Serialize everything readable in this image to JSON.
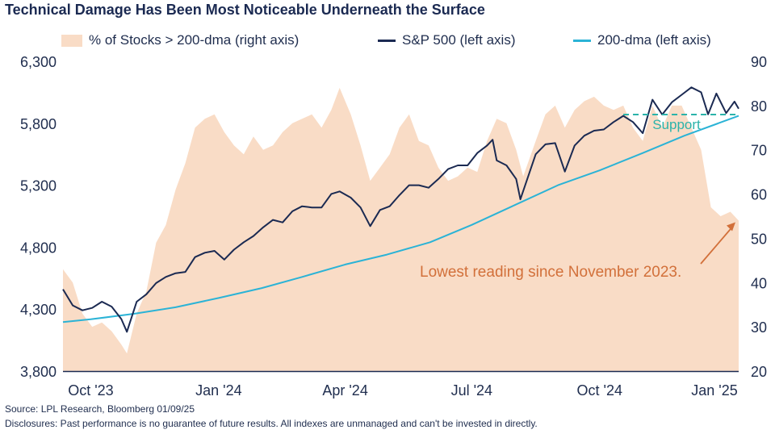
{
  "title": "Technical Damage Has Been Most Noticeable Underneath the Surface",
  "legend": [
    {
      "label": "% of Stocks > 200-dma (right axis)",
      "color": "#f9dcc6",
      "kind": "area"
    },
    {
      "label": "S&P 500 (left axis)",
      "color": "#1b2a52",
      "kind": "line"
    },
    {
      "label": "200-dma (left axis)",
      "color": "#2bb3d6",
      "kind": "line"
    }
  ],
  "annotations": {
    "support": "Support",
    "lowest": "Lowest reading since November 2023."
  },
  "footer": {
    "source": "Source: LPL Research, Bloomberg 01/09/25",
    "disclosure": "Disclosures: Past performance is no guarantee of future results. All indexes are unmanaged and can't be invested in directly."
  },
  "chart_data": {
    "type": "line",
    "title": "Technical Damage Has Been Most Noticeable Underneath the Surface",
    "x_range": [
      "2023-09-11",
      "2025-01-09"
    ],
    "x_ticks": [
      {
        "date": "2023-10-01",
        "label": "Oct '23"
      },
      {
        "date": "2024-01-01",
        "label": "Jan '24"
      },
      {
        "date": "2024-04-01",
        "label": "Apr '24"
      },
      {
        "date": "2024-07-01",
        "label": "Jul '24"
      },
      {
        "date": "2024-10-01",
        "label": "Oct '24"
      },
      {
        "date": "2025-01-01",
        "label": "Jan '25"
      }
    ],
    "y_left": {
      "min": 3800,
      "max": 6300,
      "ticks": [
        "3,800",
        "4,300",
        "4,800",
        "5,300",
        "5,800",
        "6,300"
      ],
      "tick_values": [
        3800,
        4300,
        4800,
        5300,
        5800,
        6300
      ]
    },
    "y_right": {
      "min": 20,
      "max": 90,
      "ticks": [
        "20",
        "30",
        "40",
        "50",
        "60",
        "70",
        "80",
        "90"
      ],
      "tick_values": [
        20,
        30,
        40,
        50,
        60,
        70,
        80,
        90
      ]
    },
    "grid": false,
    "legend_position": "top",
    "series": [
      {
        "name": "% of Stocks > 200-dma (right axis)",
        "axis": "right",
        "style": "area",
        "color": "#f9dcc6",
        "points": [
          [
            "2023-09-11",
            43
          ],
          [
            "2023-09-18",
            40
          ],
          [
            "2023-09-25",
            33
          ],
          [
            "2023-10-02",
            30
          ],
          [
            "2023-10-09",
            31
          ],
          [
            "2023-10-16",
            29
          ],
          [
            "2023-10-23",
            26
          ],
          [
            "2023-10-27",
            24
          ],
          [
            "2023-11-03",
            33
          ],
          [
            "2023-11-10",
            38
          ],
          [
            "2023-11-17",
            49
          ],
          [
            "2023-11-24",
            53
          ],
          [
            "2023-12-01",
            61
          ],
          [
            "2023-12-08",
            67
          ],
          [
            "2023-12-15",
            75
          ],
          [
            "2023-12-22",
            77
          ],
          [
            "2023-12-29",
            78
          ],
          [
            "2024-01-05",
            74
          ],
          [
            "2024-01-12",
            71
          ],
          [
            "2024-01-19",
            69
          ],
          [
            "2024-01-26",
            73
          ],
          [
            "2024-02-02",
            70
          ],
          [
            "2024-02-09",
            71
          ],
          [
            "2024-02-16",
            74
          ],
          [
            "2024-02-23",
            76
          ],
          [
            "2024-03-01",
            77
          ],
          [
            "2024-03-08",
            78
          ],
          [
            "2024-03-15",
            75
          ],
          [
            "2024-03-22",
            79
          ],
          [
            "2024-03-28",
            84
          ],
          [
            "2024-04-05",
            78
          ],
          [
            "2024-04-12",
            71
          ],
          [
            "2024-04-19",
            63
          ],
          [
            "2024-04-26",
            66
          ],
          [
            "2024-05-03",
            69
          ],
          [
            "2024-05-10",
            75
          ],
          [
            "2024-05-17",
            78
          ],
          [
            "2024-05-24",
            72
          ],
          [
            "2024-05-31",
            71
          ],
          [
            "2024-06-07",
            66
          ],
          [
            "2024-06-14",
            63
          ],
          [
            "2024-06-21",
            64
          ],
          [
            "2024-06-28",
            66
          ],
          [
            "2024-07-05",
            65
          ],
          [
            "2024-07-12",
            72
          ],
          [
            "2024-07-19",
            77
          ],
          [
            "2024-07-26",
            76
          ],
          [
            "2024-08-02",
            70
          ],
          [
            "2024-08-07",
            64
          ],
          [
            "2024-08-16",
            72
          ],
          [
            "2024-08-23",
            78
          ],
          [
            "2024-08-30",
            80
          ],
          [
            "2024-09-06",
            75
          ],
          [
            "2024-09-13",
            79
          ],
          [
            "2024-09-20",
            81
          ],
          [
            "2024-09-27",
            82
          ],
          [
            "2024-10-04",
            80
          ],
          [
            "2024-10-11",
            79
          ],
          [
            "2024-10-18",
            80
          ],
          [
            "2024-10-25",
            75
          ],
          [
            "2024-11-01",
            72
          ],
          [
            "2024-11-08",
            80
          ],
          [
            "2024-11-15",
            75
          ],
          [
            "2024-11-22",
            80
          ],
          [
            "2024-11-29",
            80
          ],
          [
            "2024-12-06",
            75
          ],
          [
            "2024-12-13",
            70
          ],
          [
            "2024-12-20",
            57
          ],
          [
            "2024-12-27",
            55
          ],
          [
            "2025-01-03",
            56
          ],
          [
            "2025-01-09",
            54
          ]
        ]
      },
      {
        "name": "S&P 500 (left axis)",
        "axis": "left",
        "style": "line",
        "color": "#1b2a52",
        "points": [
          [
            "2023-09-11",
            4460
          ],
          [
            "2023-09-18",
            4330
          ],
          [
            "2023-09-25",
            4290
          ],
          [
            "2023-10-02",
            4310
          ],
          [
            "2023-10-09",
            4360
          ],
          [
            "2023-10-16",
            4320
          ],
          [
            "2023-10-23",
            4220
          ],
          [
            "2023-10-27",
            4117
          ],
          [
            "2023-11-03",
            4360
          ],
          [
            "2023-11-10",
            4420
          ],
          [
            "2023-11-17",
            4510
          ],
          [
            "2023-11-24",
            4560
          ],
          [
            "2023-12-01",
            4590
          ],
          [
            "2023-12-08",
            4600
          ],
          [
            "2023-12-15",
            4720
          ],
          [
            "2023-12-22",
            4755
          ],
          [
            "2023-12-29",
            4770
          ],
          [
            "2024-01-05",
            4700
          ],
          [
            "2024-01-12",
            4780
          ],
          [
            "2024-01-19",
            4840
          ],
          [
            "2024-01-26",
            4890
          ],
          [
            "2024-02-02",
            4960
          ],
          [
            "2024-02-09",
            5020
          ],
          [
            "2024-02-16",
            5000
          ],
          [
            "2024-02-23",
            5090
          ],
          [
            "2024-03-01",
            5130
          ],
          [
            "2024-03-08",
            5120
          ],
          [
            "2024-03-15",
            5120
          ],
          [
            "2024-03-22",
            5230
          ],
          [
            "2024-03-28",
            5250
          ],
          [
            "2024-04-05",
            5200
          ],
          [
            "2024-04-12",
            5120
          ],
          [
            "2024-04-19",
            4970
          ],
          [
            "2024-04-26",
            5100
          ],
          [
            "2024-05-03",
            5130
          ],
          [
            "2024-05-10",
            5220
          ],
          [
            "2024-05-17",
            5300
          ],
          [
            "2024-05-24",
            5300
          ],
          [
            "2024-05-31",
            5280
          ],
          [
            "2024-06-07",
            5350
          ],
          [
            "2024-06-14",
            5430
          ],
          [
            "2024-06-21",
            5460
          ],
          [
            "2024-06-28",
            5460
          ],
          [
            "2024-07-05",
            5560
          ],
          [
            "2024-07-12",
            5620
          ],
          [
            "2024-07-16",
            5667
          ],
          [
            "2024-07-19",
            5500
          ],
          [
            "2024-07-26",
            5460
          ],
          [
            "2024-08-02",
            5350
          ],
          [
            "2024-08-05",
            5186
          ],
          [
            "2024-08-16",
            5550
          ],
          [
            "2024-08-23",
            5630
          ],
          [
            "2024-08-30",
            5640
          ],
          [
            "2024-09-06",
            5410
          ],
          [
            "2024-09-13",
            5620
          ],
          [
            "2024-09-20",
            5700
          ],
          [
            "2024-09-27",
            5740
          ],
          [
            "2024-10-04",
            5750
          ],
          [
            "2024-10-11",
            5810
          ],
          [
            "2024-10-18",
            5860
          ],
          [
            "2024-10-25",
            5810
          ],
          [
            "2024-11-01",
            5720
          ],
          [
            "2024-11-08",
            5990
          ],
          [
            "2024-11-15",
            5870
          ],
          [
            "2024-11-22",
            5970
          ],
          [
            "2024-11-29",
            6030
          ],
          [
            "2024-12-06",
            6090
          ],
          [
            "2024-12-13",
            6050
          ],
          [
            "2024-12-18",
            5872
          ],
          [
            "2024-12-24",
            6040
          ],
          [
            "2024-12-31",
            5882
          ],
          [
            "2025-01-06",
            5975
          ],
          [
            "2025-01-09",
            5918
          ]
        ]
      },
      {
        "name": "200-dma (left axis)",
        "axis": "left",
        "style": "line",
        "color": "#2bb3d6",
        "points": [
          [
            "2023-09-11",
            4195
          ],
          [
            "2023-10-01",
            4218
          ],
          [
            "2023-11-01",
            4262
          ],
          [
            "2023-12-01",
            4315
          ],
          [
            "2024-01-01",
            4390
          ],
          [
            "2024-02-01",
            4470
          ],
          [
            "2024-03-01",
            4560
          ],
          [
            "2024-04-01",
            4660
          ],
          [
            "2024-05-01",
            4740
          ],
          [
            "2024-06-01",
            4840
          ],
          [
            "2024-07-01",
            4980
          ],
          [
            "2024-08-01",
            5140
          ],
          [
            "2024-09-01",
            5300
          ],
          [
            "2024-10-01",
            5420
          ],
          [
            "2024-11-01",
            5560
          ],
          [
            "2024-12-01",
            5700
          ],
          [
            "2025-01-09",
            5860
          ]
        ]
      }
    ],
    "support_level": 5870
  }
}
